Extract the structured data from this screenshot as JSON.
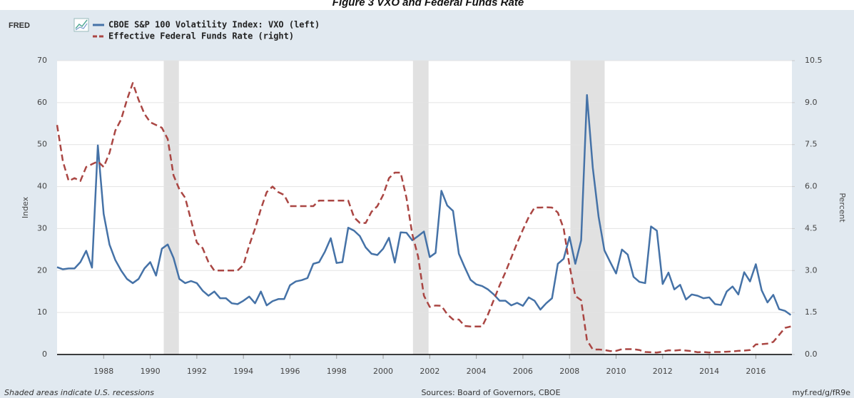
{
  "chart_data": {
    "type": "line",
    "title": "Figure 3 VXO and Federal Funds Rate",
    "logo": "FRED",
    "y_label": "Index",
    "y2_label": "Percent",
    "note": "Shaded areas indicate U.S. recessions",
    "source": "Sources: Board of Governors, CBOE",
    "link": "myf.red/g/fR9e",
    "xlim": [
      1986,
      2017.55
    ],
    "xticks": [
      1988,
      1990,
      1992,
      1994,
      1996,
      1998,
      2000,
      2002,
      2004,
      2006,
      2008,
      2010,
      2012,
      2014,
      2016
    ],
    "ylim": [
      0,
      70
    ],
    "yticks": [
      0,
      10,
      20,
      30,
      40,
      50,
      60,
      70
    ],
    "y2lim": [
      0,
      10.5
    ],
    "y2ticks": [
      {
        "value": 0,
        "label": "0.0"
      },
      1.5,
      {
        "value": 3,
        "label": "3.0"
      },
      4.5,
      {
        "value": 6,
        "label": "6.0"
      },
      7.5,
      {
        "value": 9,
        "label": "9.0"
      },
      10.5
    ],
    "grid": true,
    "recession_color": "#e1e1e1",
    "recessions": [
      [
        1990.58,
        1991.23
      ],
      [
        2001.28,
        2001.95
      ],
      [
        2008.04,
        2009.51
      ]
    ],
    "x": [
      1986,
      1986.25,
      1986.5,
      1986.75,
      1987,
      1987.25,
      1987.5,
      1987.75,
      1988,
      1988.25,
      1988.5,
      1988.75,
      1989,
      1989.25,
      1989.5,
      1989.75,
      1990,
      1990.25,
      1990.5,
      1990.75,
      1991,
      1991.25,
      1991.5,
      1991.75,
      1992,
      1992.25,
      1992.5,
      1992.75,
      1993,
      1993.25,
      1993.5,
      1993.75,
      1994,
      1994.25,
      1994.5,
      1994.75,
      1995,
      1995.25,
      1995.5,
      1995.75,
      1996,
      1996.25,
      1996.5,
      1996.75,
      1997,
      1997.25,
      1997.5,
      1997.75,
      1998,
      1998.25,
      1998.5,
      1998.75,
      1999,
      1999.25,
      1999.5,
      1999.75,
      2000,
      2000.25,
      2000.5,
      2000.75,
      2001,
      2001.25,
      2001.5,
      2001.75,
      2002,
      2002.25,
      2002.5,
      2002.75,
      2003,
      2003.25,
      2003.5,
      2003.75,
      2004,
      2004.25,
      2004.5,
      2004.75,
      2005,
      2005.25,
      2005.5,
      2005.75,
      2006,
      2006.25,
      2006.5,
      2006.75,
      2007,
      2007.25,
      2007.5,
      2007.75,
      2008,
      2008.25,
      2008.5,
      2008.75,
      2009,
      2009.25,
      2009.5,
      2009.75,
      2010,
      2010.25,
      2010.5,
      2010.75,
      2011,
      2011.25,
      2011.5,
      2011.75,
      2012,
      2012.25,
      2012.5,
      2012.75,
      2013,
      2013.25,
      2013.5,
      2013.75,
      2014,
      2014.25,
      2014.5,
      2014.75,
      2015,
      2015.25,
      2015.5,
      2015.75,
      2016,
      2016.25,
      2016.5,
      2016.75,
      2017,
      2017.25,
      2017.5
    ],
    "series": [
      {
        "name": "CBOE S&P 100 Volatility Index: VXO (left)",
        "color": "#4572a7",
        "axis": "y",
        "values": [
          20.8,
          20.3,
          20.5,
          20.5,
          22,
          24.7,
          20.7,
          49.8,
          33.5,
          26.2,
          22.5,
          20,
          18,
          17,
          18,
          20.5,
          22,
          18.8,
          25.2,
          26.2,
          23,
          18,
          17,
          17.5,
          17,
          15.2,
          14,
          15,
          13.4,
          13.4,
          12.2,
          12,
          12.8,
          13.8,
          12.2,
          15,
          11.7,
          12.7,
          13.2,
          13.2,
          16.5,
          17.4,
          17.7,
          18.2,
          21.6,
          22,
          24.5,
          27.7,
          21.8,
          22,
          30.2,
          29.5,
          28.2,
          25.5,
          24,
          23.7,
          25.2,
          27.8,
          21.9,
          29.1,
          29,
          27.2,
          28.2,
          29.3,
          23.2,
          24.2,
          39,
          35.5,
          34.2,
          24,
          20.8,
          17.8,
          16.7,
          16.3,
          15.5,
          14.3,
          12.8,
          12.8,
          11.7,
          12.3,
          11.6,
          13.6,
          12.8,
          10.7,
          12.2,
          13.4,
          21.6,
          22.8,
          28,
          21.6,
          27.2,
          61.8,
          44.5,
          32.8,
          24.8,
          22,
          19.3,
          25,
          23.8,
          18.5,
          17.3,
          17,
          30.5,
          29.5,
          16.8,
          19.5,
          15.5,
          16.6,
          13.1,
          14.3,
          14,
          13.4,
          13.6,
          12,
          11.8,
          15,
          16.2,
          14.3,
          19.6,
          17.4,
          21.5,
          15.3,
          12.4,
          14.2,
          10.8,
          10.4,
          9.4
        ]
      },
      {
        "name": "Effective Federal Funds Rate (right)",
        "color": "#aa4643",
        "axis": "y2",
        "dashed": true,
        "values": [
          8.2,
          6.9,
          6.2,
          6.3,
          6.2,
          6.7,
          6.8,
          6.9,
          6.7,
          7.2,
          8.0,
          8.4,
          9.1,
          9.7,
          9.1,
          8.6,
          8.3,
          8.2,
          8.1,
          7.7,
          6.4,
          5.9,
          5.6,
          4.8,
          4.0,
          3.8,
          3.3,
          3.0,
          3.0,
          3.0,
          3.0,
          3.0,
          3.2,
          3.9,
          4.5,
          5.2,
          5.8,
          6.0,
          5.8,
          5.7,
          5.3,
          5.3,
          5.3,
          5.3,
          5.3,
          5.5,
          5.5,
          5.5,
          5.5,
          5.5,
          5.5,
          4.9,
          4.7,
          4.7,
          5.1,
          5.3,
          5.7,
          6.3,
          6.5,
          6.5,
          5.6,
          4.3,
          3.5,
          2.1,
          1.7,
          1.75,
          1.74,
          1.44,
          1.25,
          1.25,
          1.02,
          1.0,
          1.0,
          1.0,
          1.43,
          1.95,
          2.47,
          2.94,
          3.46,
          3.98,
          4.46,
          4.91,
          5.25,
          5.25,
          5.26,
          5.25,
          5.07,
          4.5,
          3.18,
          2.09,
          1.94,
          0.51,
          0.18,
          0.18,
          0.16,
          0.12,
          0.13,
          0.19,
          0.19,
          0.19,
          0.16,
          0.09,
          0.08,
          0.07,
          0.1,
          0.15,
          0.14,
          0.16,
          0.14,
          0.12,
          0.08,
          0.09,
          0.07,
          0.09,
          0.09,
          0.1,
          0.11,
          0.13,
          0.14,
          0.16,
          0.36,
          0.37,
          0.39,
          0.45,
          0.7,
          0.95,
          1.0
        ]
      }
    ]
  }
}
